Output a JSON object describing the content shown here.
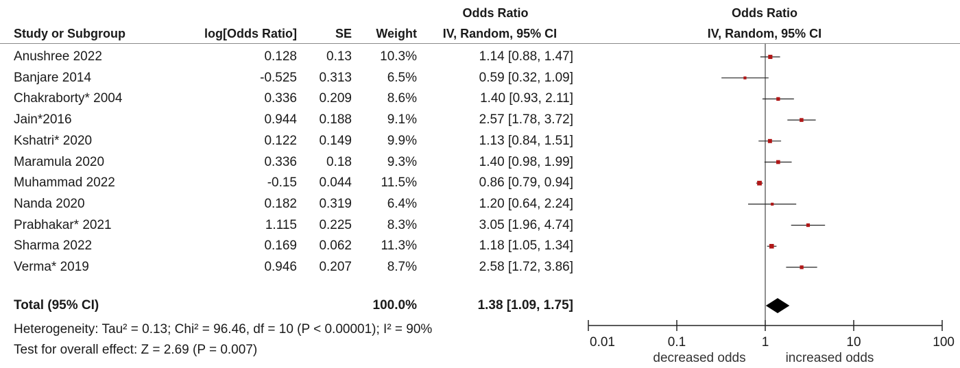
{
  "chart_data": {
    "type": "forest",
    "columns": {
      "study": "Study or Subgroup",
      "log_or": "log[Odds Ratio]",
      "se": "SE",
      "weight": "Weight",
      "ci_title": "Odds Ratio",
      "ci_subtitle": "IV, Random, 95% CI"
    },
    "plot_header": {
      "title": "Odds Ratio",
      "subtitle": "IV, Random, 95% CI"
    },
    "studies": [
      {
        "name": "Anushree 2022",
        "log_or": "0.128",
        "se": "0.13",
        "weight": "10.3%",
        "ci_text": "1.14 [0.88, 1.47]",
        "or": 1.14,
        "lo": 0.88,
        "hi": 1.47,
        "w": 10.3
      },
      {
        "name": "Banjare 2014",
        "log_or": "-0.525",
        "se": "0.313",
        "weight": "6.5%",
        "ci_text": "0.59 [0.32, 1.09]",
        "or": 0.59,
        "lo": 0.32,
        "hi": 1.09,
        "w": 6.5
      },
      {
        "name": "Chakraborty* 2004",
        "log_or": "0.336",
        "se": "0.209",
        "weight": "8.6%",
        "ci_text": "1.40 [0.93, 2.11]",
        "or": 1.4,
        "lo": 0.93,
        "hi": 2.11,
        "w": 8.6
      },
      {
        "name": "Jain*2016",
        "log_or": "0.944",
        "se": "0.188",
        "weight": "9.1%",
        "ci_text": "2.57 [1.78, 3.72]",
        "or": 2.57,
        "lo": 1.78,
        "hi": 3.72,
        "w": 9.1
      },
      {
        "name": "Kshatri* 2020",
        "log_or": "0.122",
        "se": "0.149",
        "weight": "9.9%",
        "ci_text": "1.13 [0.84, 1.51]",
        "or": 1.13,
        "lo": 0.84,
        "hi": 1.51,
        "w": 9.9
      },
      {
        "name": "Maramula 2020",
        "log_or": "0.336",
        "se": "0.18",
        "weight": "9.3%",
        "ci_text": "1.40 [0.98, 1.99]",
        "or": 1.4,
        "lo": 0.98,
        "hi": 1.99,
        "w": 9.3
      },
      {
        "name": "Muhammad 2022",
        "log_or": "-0.15",
        "se": "0.044",
        "weight": "11.5%",
        "ci_text": "0.86 [0.79, 0.94]",
        "or": 0.86,
        "lo": 0.79,
        "hi": 0.94,
        "w": 11.5
      },
      {
        "name": "Nanda 2020",
        "log_or": "0.182",
        "se": "0.319",
        "weight": "6.4%",
        "ci_text": "1.20 [0.64, 2.24]",
        "or": 1.2,
        "lo": 0.64,
        "hi": 2.24,
        "w": 6.4
      },
      {
        "name": "Prabhakar* 2021",
        "log_or": "1.115",
        "se": "0.225",
        "weight": "8.3%",
        "ci_text": "3.05 [1.96, 4.74]",
        "or": 3.05,
        "lo": 1.96,
        "hi": 4.74,
        "w": 8.3
      },
      {
        "name": "Sharma 2022",
        "log_or": "0.169",
        "se": "0.062",
        "weight": "11.3%",
        "ci_text": "1.18 [1.05, 1.34]",
        "or": 1.18,
        "lo": 1.05,
        "hi": 1.34,
        "w": 11.3
      },
      {
        "name": "Verma* 2019",
        "log_or": "0.946",
        "se": "0.207",
        "weight": "8.7%",
        "ci_text": "2.58 [1.72, 3.86]",
        "or": 2.58,
        "lo": 1.72,
        "hi": 3.86,
        "w": 8.7
      }
    ],
    "total": {
      "label": "Total (95% CI)",
      "weight": "100.0%",
      "ci_text": "1.38 [1.09, 1.75]",
      "or": 1.38,
      "lo": 1.09,
      "hi": 1.75
    },
    "heterogeneity": "Heterogeneity: Tau² = 0.13; Chi² = 96.46, df = 10 (P < 0.00001); I² = 90%",
    "overall_effect": "Test for overall effect: Z = 2.69 (P = 0.007)",
    "x_axis": {
      "scale": "log",
      "range": [
        0.01,
        100
      ],
      "ticks": [
        0.01,
        0.1,
        1,
        10,
        100
      ],
      "tick_labels": [
        "0.01",
        "0.1",
        "1",
        "10",
        "100"
      ],
      "null_line": 1,
      "left_label": "decreased odds",
      "right_label": "increased odds"
    },
    "colors": {
      "study_marker": "#b01818",
      "total_marker": "#000000",
      "axis": "#222222"
    }
  }
}
